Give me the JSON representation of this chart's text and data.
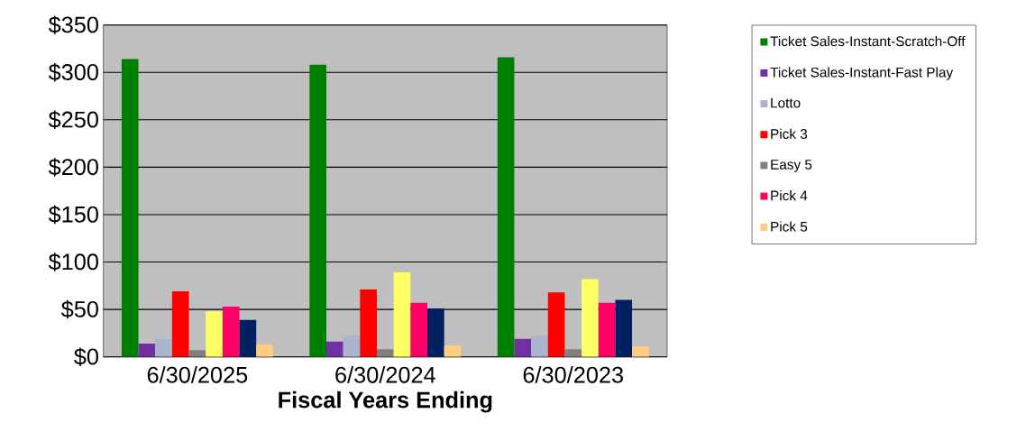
{
  "chart_data": {
    "type": "bar",
    "xlabel": "Fiscal Years Ending",
    "categories": [
      "6/30/2025",
      "6/30/2024",
      "6/30/2023"
    ],
    "series": [
      {
        "name": "Ticket Sales-Instant-Scratch-Off",
        "color": "#008000",
        "values": [
          314,
          308,
          316
        ]
      },
      {
        "name": "Ticket Sales-Instant-Fast Play",
        "color": "#7030a0",
        "values": [
          14,
          16,
          19
        ]
      },
      {
        "name": "Lotto",
        "color": "#aab4cc",
        "values": [
          19,
          22,
          22
        ]
      },
      {
        "name": "Pick 3",
        "color": "#ff0000",
        "values": [
          69,
          71,
          68
        ]
      },
      {
        "name": "Easy 5",
        "color": "#808080",
        "values": [
          7,
          8,
          8
        ]
      },
      {
        "color": "#ffff66",
        "values": [
          48,
          89,
          82
        ]
      },
      {
        "name": "Pick 4",
        "color": "#ff0066",
        "values": [
          53,
          57,
          57
        ]
      },
      {
        "color": "#002060",
        "values": [
          39,
          51,
          60
        ]
      },
      {
        "name": "Pick 5",
        "color": "#ffcc80",
        "values": [
          13,
          12,
          11
        ]
      }
    ],
    "ylim": [
      0,
      350
    ],
    "yticks": [
      {
        "value": 0,
        "label": "$0"
      },
      {
        "value": 50,
        "label": "$50"
      },
      {
        "value": 100,
        "label": "$100"
      },
      {
        "value": 150,
        "label": "$150"
      },
      {
        "value": 200,
        "label": "$200"
      },
      {
        "value": 250,
        "label": "$250"
      },
      {
        "value": 300,
        "label": "$300"
      },
      {
        "value": 350,
        "label": "$350"
      }
    ],
    "grid": "y",
    "legend": "right"
  }
}
